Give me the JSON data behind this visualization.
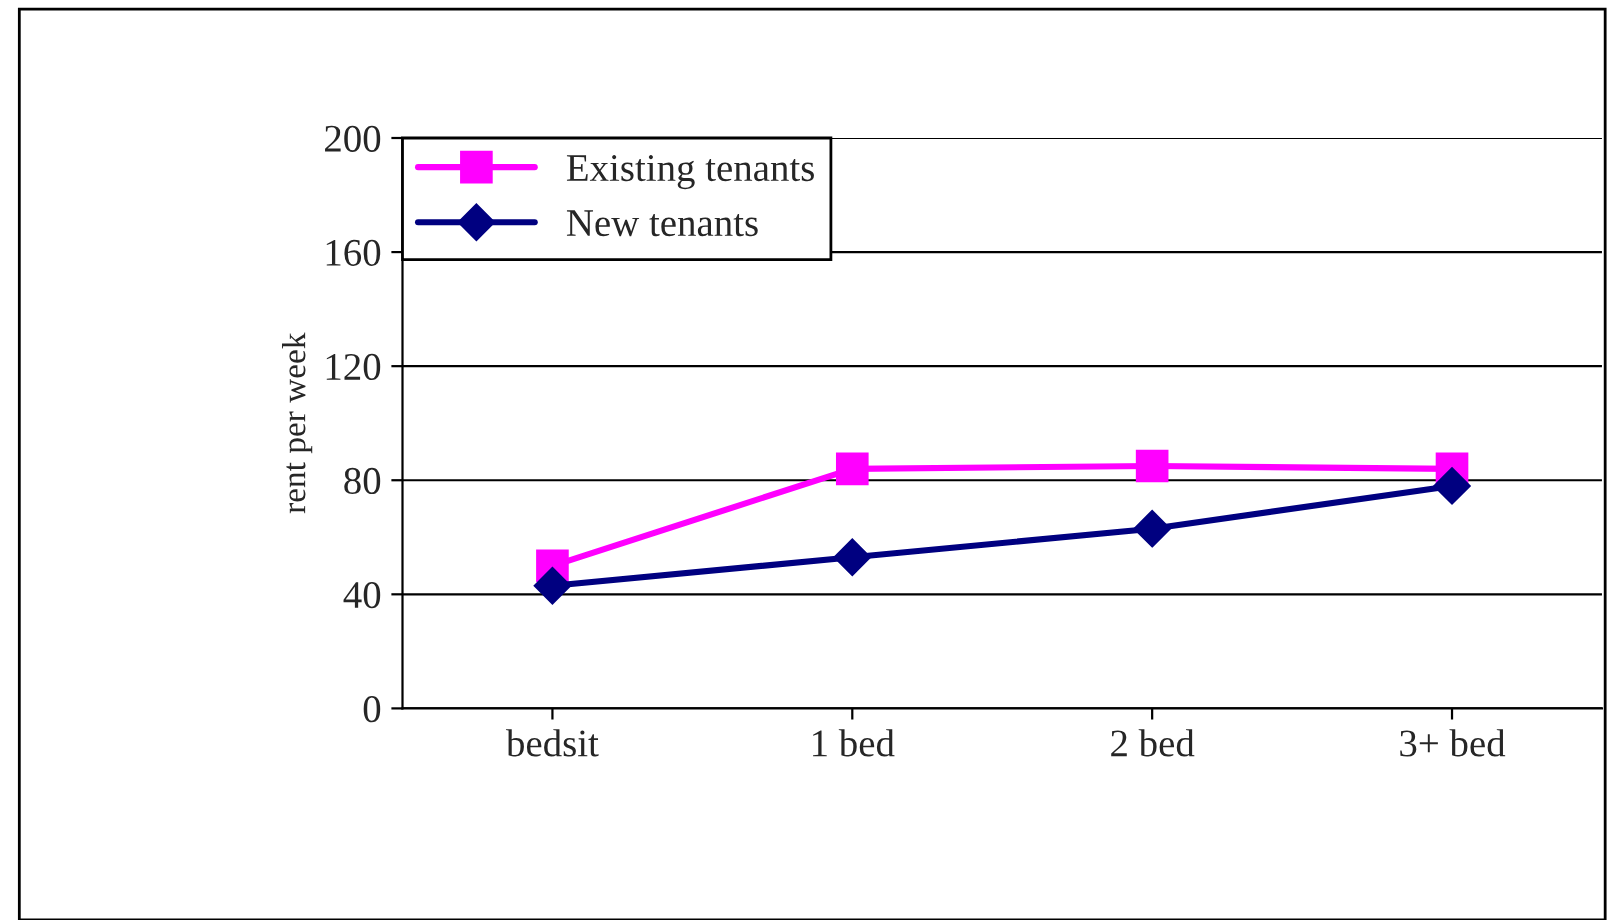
{
  "chart_data": {
    "type": "line",
    "ylabel": "rent per week",
    "categories": [
      "bedsit",
      "1 bed",
      "2 bed",
      "3+ bed"
    ],
    "series": [
      {
        "name": "Existing tenants",
        "color": "#ff00ff",
        "marker": "square",
        "values": [
          50,
          84,
          85,
          84
        ]
      },
      {
        "name": "New tenants",
        "color": "#000080",
        "marker": "diamond",
        "values": [
          43,
          53,
          63,
          78
        ]
      }
    ],
    "ylim": [
      0,
      200
    ],
    "yticks": [
      0,
      40,
      80,
      120,
      160,
      200
    ],
    "grid": "y",
    "legend": "top left",
    "line_style": "solid"
  }
}
